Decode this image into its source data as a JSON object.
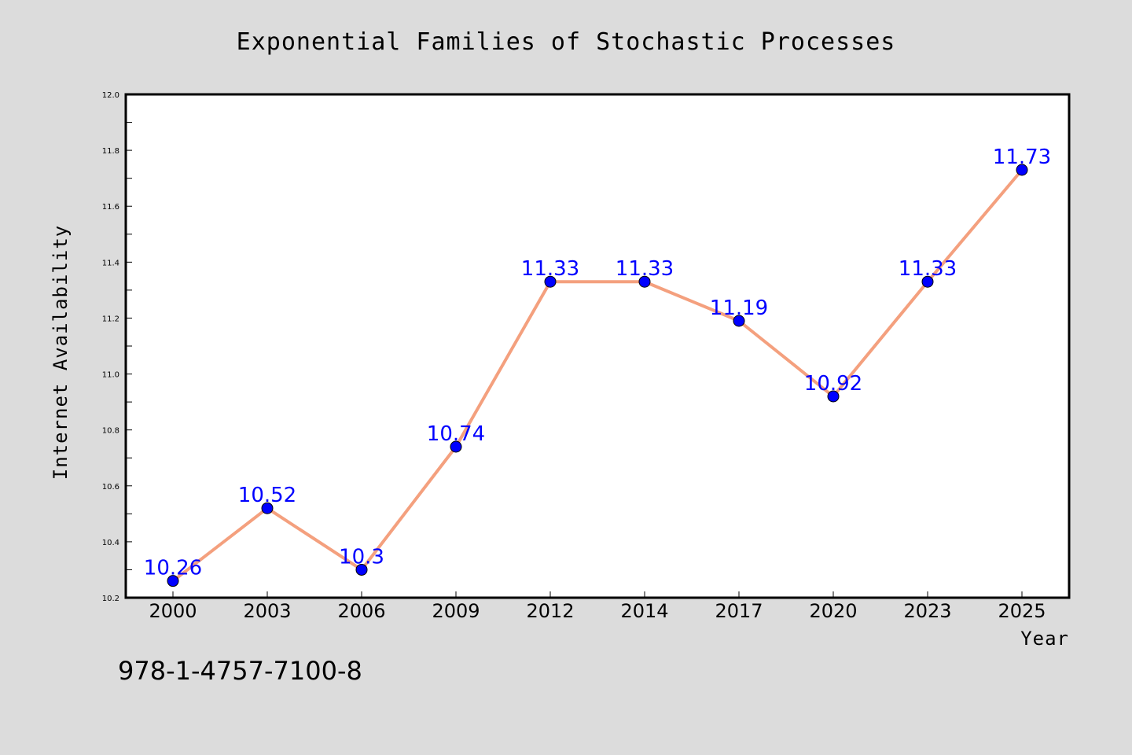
{
  "colors": {
    "background": "#dcdcdc",
    "plot_background": "#ffffff",
    "line": "#f4a07e",
    "marker": "#0000ff",
    "data_label": "#0000ff"
  },
  "footer": {
    "text": "978-1-4757-7100-8"
  },
  "chart_data": {
    "type": "line",
    "title": "Exponential Families of Stochastic Processes",
    "xlabel": "Year",
    "ylabel": "Internet Availability",
    "categories": [
      "2000",
      "2003",
      "2006",
      "2009",
      "2012",
      "2014",
      "2017",
      "2020",
      "2023",
      "2025"
    ],
    "series": [
      {
        "values": [
          10.26,
          10.52,
          10.3,
          10.74,
          11.33,
          11.33,
          11.19,
          10.92,
          11.33,
          11.73
        ]
      }
    ],
    "data_labels": [
      "10.26",
      "10.52",
      "10.3",
      "10.74",
      "11.33",
      "11.33",
      "11.19",
      "10.92",
      "11.33",
      "11.73"
    ],
    "ylim": [
      10.2,
      12.0
    ],
    "yticks": [
      "10.2",
      "10.4",
      "10.6",
      "10.8",
      "11.0",
      "11.2",
      "11.4",
      "11.6",
      "11.8",
      "12.0"
    ],
    "grid": false,
    "legend": "none"
  }
}
